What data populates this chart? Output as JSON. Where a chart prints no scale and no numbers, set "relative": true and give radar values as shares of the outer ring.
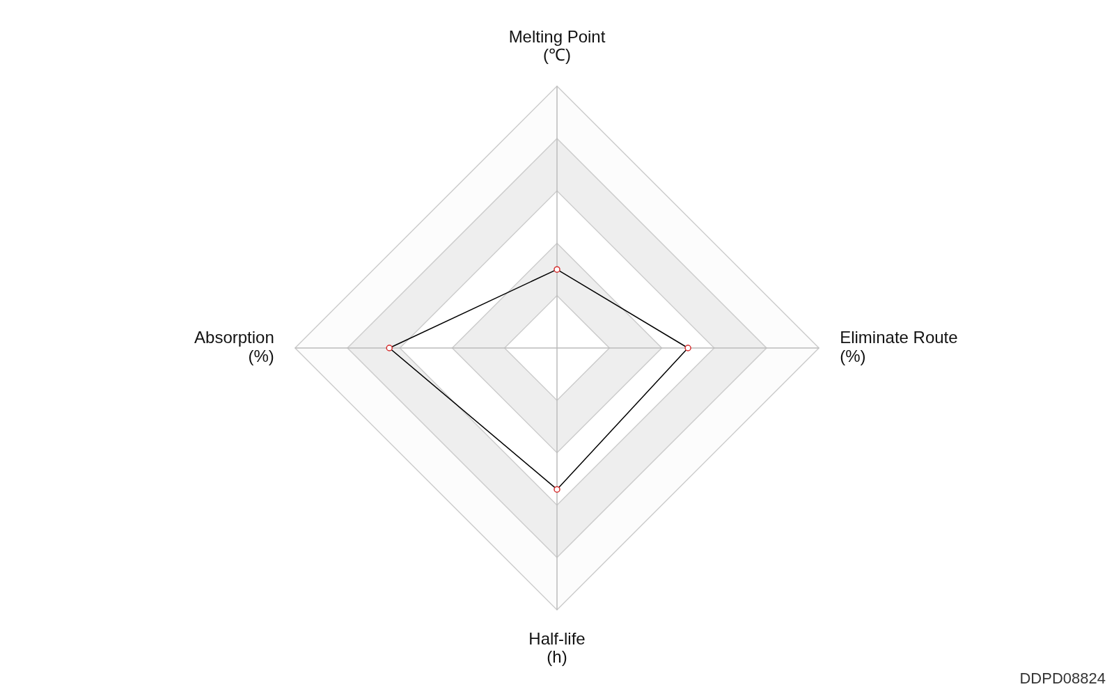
{
  "chart_data": {
    "type": "radar",
    "categories": [
      "Melting Point\n(℃)",
      "Eliminate Route\n(%)",
      "Half-life\n(h)",
      "Absorption\n(%)"
    ],
    "relative": true,
    "series": [
      {
        "color": "#000000",
        "values": [
          0.3,
          0.5,
          0.54,
          0.64
        ]
      }
    ],
    "marker": "circle",
    "grid": true,
    "legend": false,
    "annotations": [
      "DDPD08824"
    ]
  }
}
